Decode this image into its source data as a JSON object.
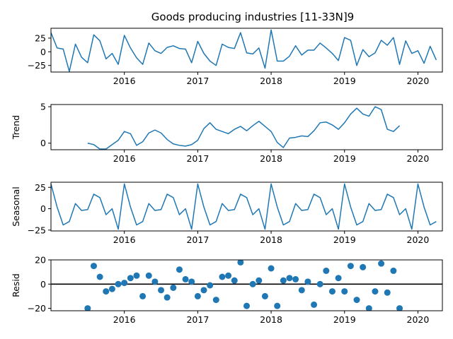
{
  "chart_data": [
    {
      "type": "line",
      "title": "Goods producing industries  [11-33N]9",
      "ylabel": "",
      "x_start": "2015-01",
      "x_frequency": "monthly",
      "xlim": [
        "2015-01",
        "2020-05"
      ],
      "x_ticks": [
        "2016",
        "2017",
        "2018",
        "2019",
        "2020"
      ],
      "ylim": [
        -37,
        43
      ],
      "y_ticks": [
        25,
        0,
        -25
      ],
      "series": [
        {
          "values": [
            35,
            7,
            5,
            -36,
            14,
            -10,
            -20,
            31,
            20,
            -13,
            -3,
            -23,
            30,
            7,
            -11,
            -23,
            16,
            2,
            -3,
            8,
            11,
            6,
            5,
            -20,
            19,
            -3,
            -17,
            -25,
            14,
            8,
            6,
            35,
            -2,
            -4,
            7,
            -30,
            40,
            -17,
            -17,
            -8,
            11,
            -6,
            3,
            3,
            16,
            7,
            -3,
            -16,
            26,
            21,
            -25,
            4,
            -9,
            -2,
            21,
            12,
            26,
            -23,
            20,
            -3,
            2,
            -21,
            10,
            -15
          ]
        }
      ]
    },
    {
      "type": "line",
      "title": "",
      "ylabel": "Trend",
      "x_start": "2015-01",
      "x_frequency": "monthly",
      "xlim": [
        "2015-01",
        "2020-05"
      ],
      "x_ticks": [
        "2016",
        "2017",
        "2018",
        "2019",
        "2020"
      ],
      "ylim": [
        -0.9,
        5.3
      ],
      "y_ticks": [
        5,
        0
      ],
      "series": [
        {
          "values": [
            null,
            null,
            null,
            null,
            null,
            null,
            0.0,
            -0.2,
            -0.8,
            -0.8,
            -0.2,
            0.4,
            1.6,
            1.3,
            -0.3,
            0.2,
            1.4,
            1.8,
            1.4,
            0.5,
            -0.1,
            -0.3,
            -0.4,
            -0.2,
            0.4,
            2.0,
            2.8,
            1.9,
            1.6,
            1.3,
            1.9,
            2.3,
            1.7,
            2.4,
            3.0,
            2.3,
            1.6,
            0.1,
            -0.6,
            0.7,
            0.8,
            1.0,
            0.9,
            1.7,
            2.8,
            2.9,
            2.5,
            1.9,
            2.8,
            4.0,
            4.8,
            4.0,
            3.7,
            5.0,
            4.6,
            1.9,
            1.6,
            2.4,
            null,
            null,
            null,
            null,
            null,
            null
          ]
        }
      ]
    },
    {
      "type": "line",
      "title": "",
      "ylabel": "Seasonal",
      "x_start": "2015-01",
      "x_frequency": "monthly",
      "xlim": [
        "2015-01",
        "2020-05"
      ],
      "x_ticks": [
        "2016",
        "2017",
        "2018",
        "2019",
        "2020"
      ],
      "ylim": [
        -26,
        31
      ],
      "y_ticks": [
        25,
        0,
        -25
      ],
      "series": [
        {
          "values": [
            29,
            2,
            -19,
            -15,
            6,
            -2,
            -1,
            17,
            13,
            -7,
            0,
            -24,
            29,
            2,
            -19,
            -15,
            6,
            -2,
            -1,
            17,
            13,
            -7,
            0,
            -24,
            29,
            2,
            -19,
            -15,
            6,
            -2,
            -1,
            17,
            13,
            -7,
            0,
            -24,
            29,
            2,
            -19,
            -15,
            6,
            -2,
            -1,
            17,
            13,
            -7,
            0,
            -24,
            29,
            2,
            -19,
            -15,
            6,
            -2,
            -1,
            17,
            13,
            -7,
            0,
            -24,
            29,
            2,
            -19,
            -15
          ]
        }
      ]
    },
    {
      "type": "scatter",
      "title": "",
      "ylabel": "Resid",
      "x_start": "2015-01",
      "x_frequency": "monthly",
      "xlim": [
        "2015-01",
        "2020-05"
      ],
      "x_ticks": [
        "2016",
        "2017",
        "2018",
        "2019",
        "2020"
      ],
      "ylim": [
        -22,
        20
      ],
      "y_ticks": [
        20,
        0,
        -20
      ],
      "baseline": 0,
      "series": [
        {
          "values": [
            null,
            null,
            null,
            null,
            null,
            null,
            -20,
            15,
            6,
            -6,
            -4,
            0,
            1,
            5,
            7,
            -10,
            7,
            2,
            -5,
            -11,
            -3,
            12,
            4,
            2,
            -10,
            -5,
            -1,
            -13,
            6,
            7,
            3,
            18,
            -18,
            0,
            3,
            -10,
            13,
            -18,
            3,
            5,
            4,
            -5,
            2,
            -17,
            0,
            11,
            -6,
            5,
            -6,
            15,
            -13,
            14,
            -20,
            -6,
            17,
            -7,
            11,
            -20,
            null,
            null,
            null,
            null,
            null,
            null
          ]
        }
      ]
    }
  ],
  "colors": {
    "line": "#1f77b4",
    "marker": "#1f77b4",
    "baseline": "#000000"
  }
}
